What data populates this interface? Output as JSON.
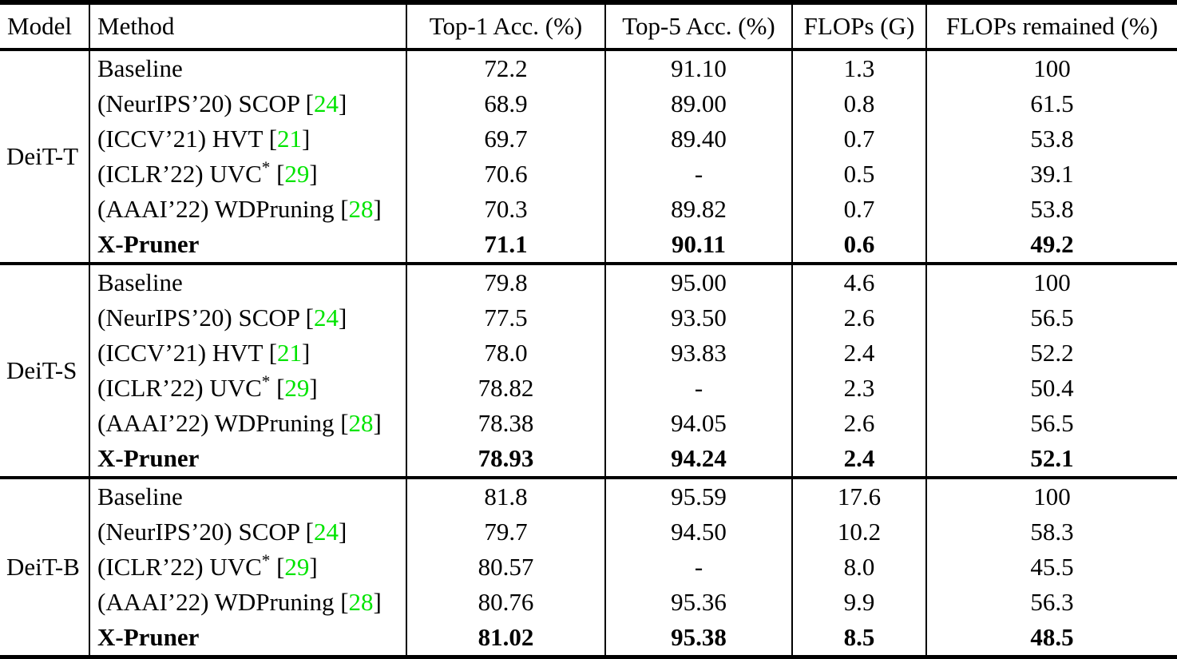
{
  "table": {
    "title": "pruning-results-comparison-table",
    "header": [
      "Model",
      "Method",
      "Top-1 Acc. (%)",
      "Top-5 Acc. (%)",
      "FLOPs (G)",
      "FLOPs remained (%)"
    ],
    "citation_color": "#00e400",
    "text_color": "#000000",
    "background_color": "#ffffff",
    "groups": [
      {
        "model": "DeiT-T",
        "rows": [
          {
            "method": "Baseline",
            "asterisk": false,
            "cite": null,
            "bold": false,
            "values": [
              "72.2",
              "91.10",
              "1.3",
              "100"
            ]
          },
          {
            "method": "(NeurIPS’20) SCOP",
            "asterisk": false,
            "cite": "24",
            "bold": false,
            "values": [
              "68.9",
              "89.00",
              "0.8",
              "61.5"
            ]
          },
          {
            "method": "(ICCV’21) HVT",
            "asterisk": false,
            "cite": "21",
            "bold": false,
            "values": [
              "69.7",
              "89.40",
              "0.7",
              "53.8"
            ]
          },
          {
            "method": "(ICLR’22) UVC",
            "asterisk": true,
            "cite": "29",
            "bold": false,
            "values": [
              "70.6",
              "-",
              "0.5",
              "39.1"
            ]
          },
          {
            "method": "(AAAI’22) WDPruning",
            "asterisk": false,
            "cite": "28",
            "bold": false,
            "values": [
              "70.3",
              "89.82",
              "0.7",
              "53.8"
            ]
          },
          {
            "method": "X-Pruner",
            "asterisk": false,
            "cite": null,
            "bold": true,
            "values": [
              "71.1",
              "90.11",
              "0.6",
              "49.2"
            ]
          }
        ]
      },
      {
        "model": "DeiT-S",
        "rows": [
          {
            "method": "Baseline",
            "asterisk": false,
            "cite": null,
            "bold": false,
            "values": [
              "79.8",
              "95.00",
              "4.6",
              "100"
            ]
          },
          {
            "method": "(NeurIPS’20) SCOP",
            "asterisk": false,
            "cite": "24",
            "bold": false,
            "values": [
              "77.5",
              "93.50",
              "2.6",
              "56.5"
            ]
          },
          {
            "method": "(ICCV’21) HVT",
            "asterisk": false,
            "cite": "21",
            "bold": false,
            "values": [
              "78.0",
              "93.83",
              "2.4",
              "52.2"
            ]
          },
          {
            "method": "(ICLR’22) UVC",
            "asterisk": true,
            "cite": "29",
            "bold": false,
            "values": [
              "78.82",
              "-",
              "2.3",
              "50.4"
            ]
          },
          {
            "method": "(AAAI’22) WDPruning",
            "asterisk": false,
            "cite": "28",
            "bold": false,
            "values": [
              "78.38",
              "94.05",
              "2.6",
              "56.5"
            ]
          },
          {
            "method": "X-Pruner",
            "asterisk": false,
            "cite": null,
            "bold": true,
            "values": [
              "78.93",
              "94.24",
              "2.4",
              "52.1"
            ]
          }
        ]
      },
      {
        "model": "DeiT-B",
        "rows": [
          {
            "method": "Baseline",
            "asterisk": false,
            "cite": null,
            "bold": false,
            "values": [
              "81.8",
              "95.59",
              "17.6",
              "100"
            ]
          },
          {
            "method": "(NeurIPS’20) SCOP",
            "asterisk": false,
            "cite": "24",
            "bold": false,
            "values": [
              "79.7",
              "94.50",
              "10.2",
              "58.3"
            ]
          },
          {
            "method": "(ICLR’22) UVC",
            "asterisk": true,
            "cite": "29",
            "bold": false,
            "values": [
              "80.57",
              "-",
              "8.0",
              "45.5"
            ]
          },
          {
            "method": "(AAAI’22) WDPruning",
            "asterisk": false,
            "cite": "28",
            "bold": false,
            "values": [
              "80.76",
              "95.36",
              "9.9",
              "56.3"
            ]
          },
          {
            "method": "X-Pruner",
            "asterisk": false,
            "cite": null,
            "bold": true,
            "values": [
              "81.02",
              "95.38",
              "8.5",
              "48.5"
            ]
          }
        ]
      }
    ]
  }
}
